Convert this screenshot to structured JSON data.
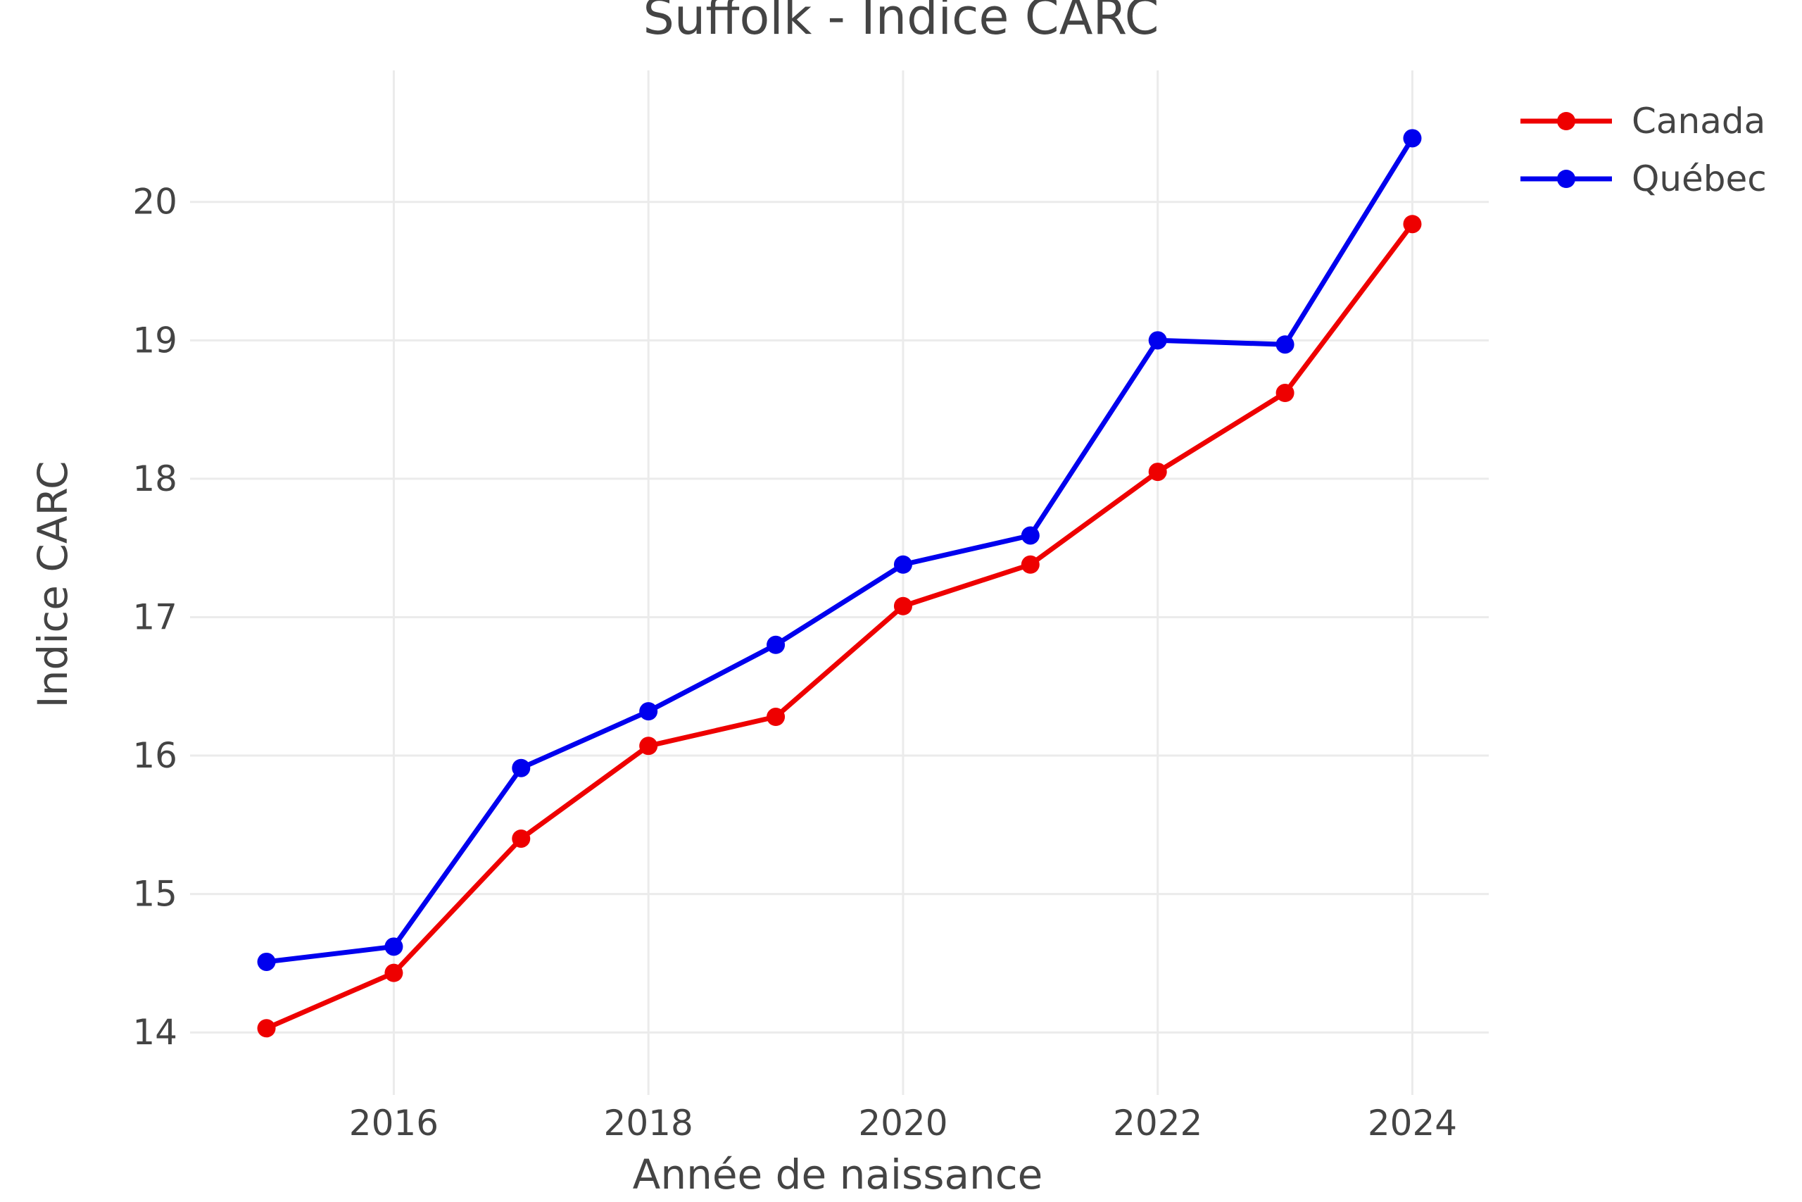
{
  "chart_data": {
    "type": "line",
    "title": "Suffolk - Indice CARC",
    "xlabel": "Année de naissance",
    "ylabel": "Indice CARC",
    "x": [
      2015,
      2016,
      2017,
      2018,
      2019,
      2020,
      2021,
      2022,
      2023,
      2024
    ],
    "xlim": [
      2014.4,
      2024.6
    ],
    "ylim": [
      13.65,
      20.95
    ],
    "x_ticks": [
      2016,
      2018,
      2020,
      2022,
      2024
    ],
    "y_ticks": [
      14,
      15,
      16,
      17,
      18,
      19,
      20
    ],
    "grid": true,
    "legend_position": "top-right",
    "series": [
      {
        "name": "Canada",
        "color": "#ee0000",
        "values": [
          14.03,
          14.43,
          15.4,
          16.07,
          16.28,
          17.08,
          17.38,
          18.05,
          18.62,
          19.84
        ]
      },
      {
        "name": "Québec",
        "color": "#0000ee",
        "values": [
          14.51,
          14.62,
          15.91,
          16.32,
          16.8,
          17.38,
          17.59,
          19.0,
          18.97,
          20.46
        ]
      }
    ]
  }
}
